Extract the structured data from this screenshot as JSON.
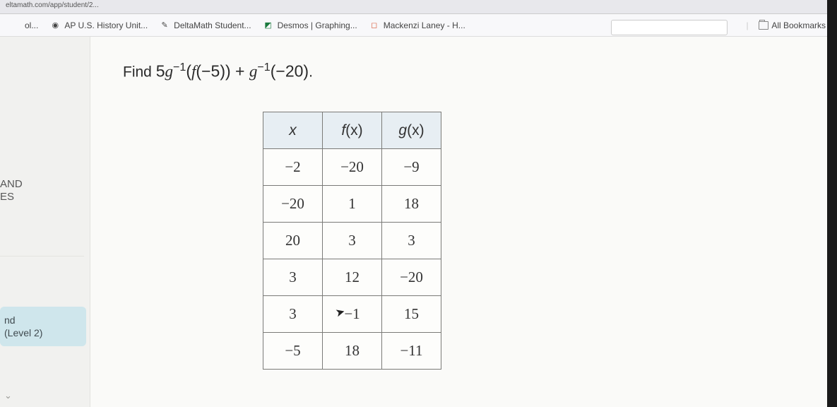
{
  "url_bar": "eltamath.com/app/student/2...",
  "bookmarks": [
    {
      "label": "ol...",
      "icon": "",
      "iconColor": "#888"
    },
    {
      "label": "AP U.S. History Unit...",
      "icon": "◉",
      "iconColor": "#6a6a6a"
    },
    {
      "label": "DeltaMath Student...",
      "icon": "✎",
      "iconColor": "#555"
    },
    {
      "label": "Desmos | Graphing...",
      "icon": "◩",
      "iconColor": "#1b7a3e"
    },
    {
      "label": "Mackenzi Laney - H...",
      "icon": "◻",
      "iconColor": "#d85a3a"
    }
  ],
  "all_bookmarks_label": "All Bookmarks",
  "sidebar": {
    "line1": "AND",
    "line2": "ES",
    "box_line1": "nd",
    "box_line2": "(Level 2)"
  },
  "question": {
    "prefix": "Find ",
    "coef": "5",
    "g": "g",
    "inv": "−1",
    "open1": "(",
    "f": "f",
    "open2": "(",
    "farg": "−5",
    "close2": ")",
    "close1": ")",
    "plus": " + ",
    "g2": "g",
    "inv2": "−1",
    "open3": "(",
    "garg": "−20",
    "close3": ")",
    "period": "."
  },
  "table": {
    "headers": {
      "x": "x",
      "fx_f": "f",
      "fx_p": "(x)",
      "gx_g": "g",
      "gx_p": "(x)"
    },
    "rows": [
      [
        "−2",
        "−20",
        "−9"
      ],
      [
        "−20",
        "1",
        "18"
      ],
      [
        "20",
        "3",
        "3"
      ],
      [
        "3",
        "12",
        "−20"
      ],
      [
        "3",
        "−1",
        "15"
      ],
      [
        "−5",
        "18",
        "−11"
      ]
    ]
  },
  "colors": {
    "table_header_bg": "#e7eef3",
    "table_border": "#7b7b78",
    "sidebar_box_bg": "#cfe6ec"
  }
}
